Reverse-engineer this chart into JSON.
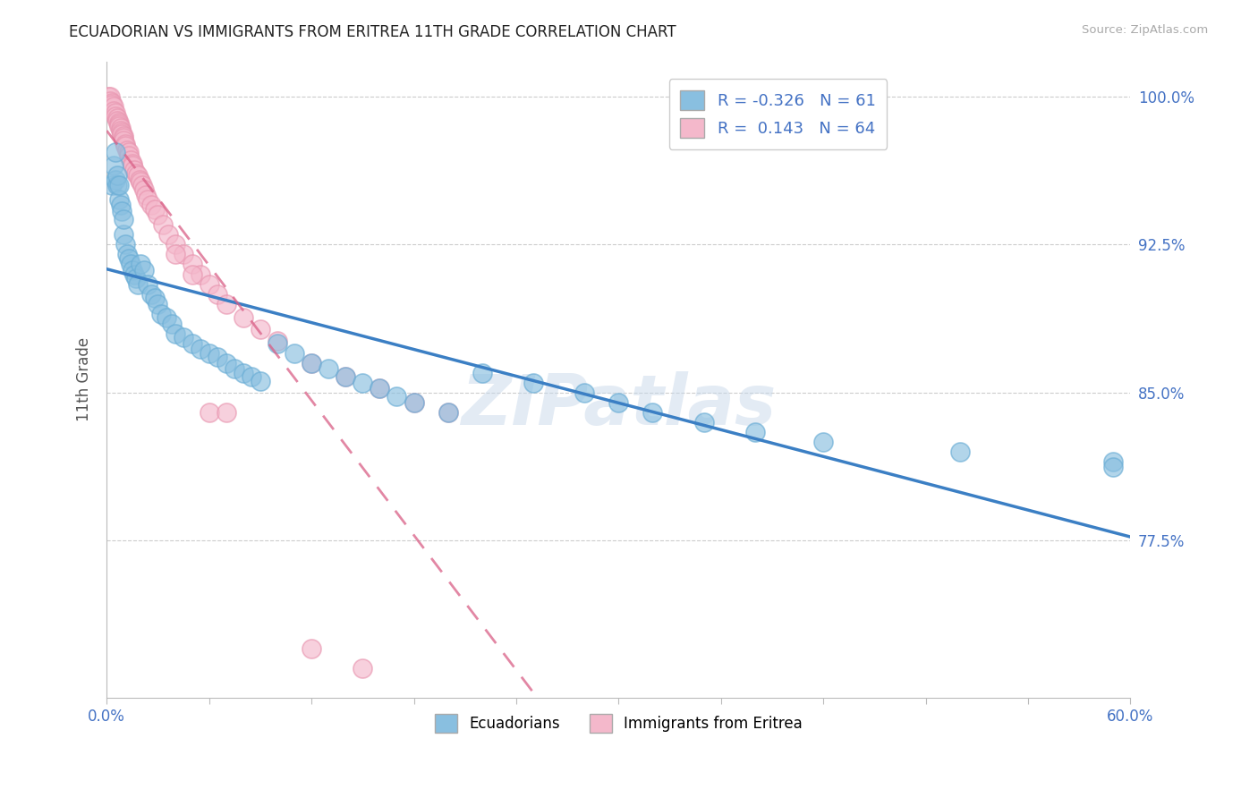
{
  "title": "ECUADORIAN VS IMMIGRANTS FROM ERITREA 11TH GRADE CORRELATION CHART",
  "source": "Source: ZipAtlas.com",
  "ylabel": "11th Grade",
  "ytick_labels": [
    "77.5%",
    "85.0%",
    "92.5%",
    "100.0%"
  ],
  "ytick_vals": [
    0.775,
    0.85,
    0.925,
    1.0
  ],
  "xmin": 0.0,
  "xmax": 0.6,
  "ymin": 0.695,
  "ymax": 1.018,
  "blue_R": -0.326,
  "blue_N": 61,
  "pink_R": 0.143,
  "pink_N": 64,
  "blue_color": "#89bfe0",
  "pink_color": "#f4b8cb",
  "blue_edge_color": "#6aadd5",
  "pink_edge_color": "#e896b0",
  "blue_line_color": "#3b7fc4",
  "pink_line_color": "#d95f86",
  "watermark": "ZIPatlas",
  "blue_dots_x": [
    0.003,
    0.004,
    0.005,
    0.005,
    0.006,
    0.006,
    0.007,
    0.007,
    0.008,
    0.009,
    0.01,
    0.01,
    0.011,
    0.012,
    0.013,
    0.014,
    0.015,
    0.016,
    0.017,
    0.018,
    0.02,
    0.022,
    0.024,
    0.026,
    0.028,
    0.03,
    0.032,
    0.035,
    0.038,
    0.04,
    0.045,
    0.05,
    0.055,
    0.06,
    0.065,
    0.07,
    0.075,
    0.08,
    0.085,
    0.09,
    0.1,
    0.11,
    0.12,
    0.13,
    0.14,
    0.15,
    0.16,
    0.17,
    0.18,
    0.2,
    0.22,
    0.25,
    0.28,
    0.3,
    0.32,
    0.35,
    0.38,
    0.42,
    0.5,
    0.59,
    0.59
  ],
  "blue_dots_y": [
    0.955,
    0.965,
    0.958,
    0.972,
    0.955,
    0.96,
    0.948,
    0.955,
    0.945,
    0.942,
    0.93,
    0.938,
    0.925,
    0.92,
    0.918,
    0.915,
    0.912,
    0.91,
    0.908,
    0.905,
    0.915,
    0.912,
    0.905,
    0.9,
    0.898,
    0.895,
    0.89,
    0.888,
    0.885,
    0.88,
    0.878,
    0.875,
    0.872,
    0.87,
    0.868,
    0.865,
    0.862,
    0.86,
    0.858,
    0.856,
    0.875,
    0.87,
    0.865,
    0.862,
    0.858,
    0.855,
    0.852,
    0.848,
    0.845,
    0.84,
    0.86,
    0.855,
    0.85,
    0.845,
    0.84,
    0.835,
    0.83,
    0.825,
    0.82,
    0.815,
    0.812
  ],
  "pink_dots_x": [
    0.001,
    0.002,
    0.002,
    0.003,
    0.003,
    0.004,
    0.004,
    0.005,
    0.005,
    0.006,
    0.006,
    0.007,
    0.007,
    0.007,
    0.008,
    0.008,
    0.009,
    0.009,
    0.01,
    0.01,
    0.01,
    0.011,
    0.011,
    0.012,
    0.013,
    0.013,
    0.014,
    0.015,
    0.015,
    0.016,
    0.017,
    0.018,
    0.019,
    0.02,
    0.021,
    0.022,
    0.023,
    0.024,
    0.026,
    0.028,
    0.03,
    0.033,
    0.036,
    0.04,
    0.045,
    0.05,
    0.055,
    0.06,
    0.065,
    0.07,
    0.08,
    0.09,
    0.1,
    0.12,
    0.14,
    0.16,
    0.18,
    0.2,
    0.04,
    0.05,
    0.06,
    0.07,
    0.12,
    0.15
  ],
  "pink_dots_y": [
    1.0,
    1.0,
    0.998,
    0.997,
    0.996,
    0.995,
    0.993,
    0.992,
    0.99,
    0.989,
    0.988,
    0.987,
    0.986,
    0.985,
    0.984,
    0.983,
    0.982,
    0.981,
    0.98,
    0.979,
    0.978,
    0.976,
    0.975,
    0.973,
    0.972,
    0.97,
    0.968,
    0.966,
    0.965,
    0.963,
    0.961,
    0.96,
    0.958,
    0.957,
    0.955,
    0.953,
    0.95,
    0.948,
    0.945,
    0.943,
    0.94,
    0.935,
    0.93,
    0.925,
    0.92,
    0.915,
    0.91,
    0.905,
    0.9,
    0.895,
    0.888,
    0.882,
    0.876,
    0.865,
    0.858,
    0.852,
    0.845,
    0.84,
    0.92,
    0.91,
    0.84,
    0.84,
    0.72,
    0.71
  ]
}
